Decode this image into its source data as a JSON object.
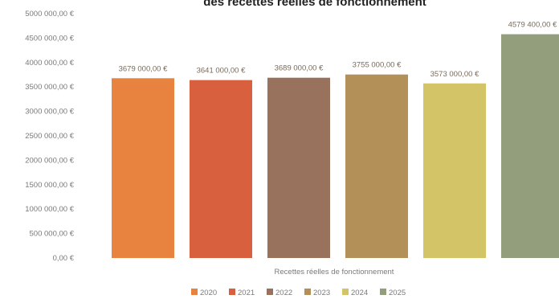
{
  "chart_data": {
    "type": "bar",
    "title": "des recettes réelles de fonctionnement",
    "xlabel": "Recettes réelles de fonctionnement",
    "ylabel": "",
    "ylim": [
      0,
      5000000
    ],
    "ytick_labels": [
      "0,00 €",
      "500 000,00 €",
      "1000 000,00 €",
      "1500 000,00 €",
      "2000 000,00 €",
      "2500 000,00 €",
      "3000 000,00 €",
      "3500 000,00 €",
      "4000 000,00 €",
      "4500 000,00 €",
      "5000 000,00 €"
    ],
    "series": [
      {
        "name": "2020",
        "value": 3679000,
        "label": "3679 000,00 €",
        "color": "#e8823f"
      },
      {
        "name": "2021",
        "value": 3641000,
        "label": "3641 000,00 €",
        "color": "#d9603e"
      },
      {
        "name": "2022",
        "value": 3689000,
        "label": "3689 000,00 €",
        "color": "#98725c"
      },
      {
        "name": "2023",
        "value": 3755000,
        "label": "3755 000,00 €",
        "color": "#b39058"
      },
      {
        "name": "2024",
        "value": 3573000,
        "label": "3573 000,00 €",
        "color": "#d3c467"
      },
      {
        "name": "2025",
        "value": 4579400,
        "label": "4579 400,00 €",
        "color": "#939f7c"
      }
    ],
    "legend_position": "bottom",
    "grid": false
  }
}
